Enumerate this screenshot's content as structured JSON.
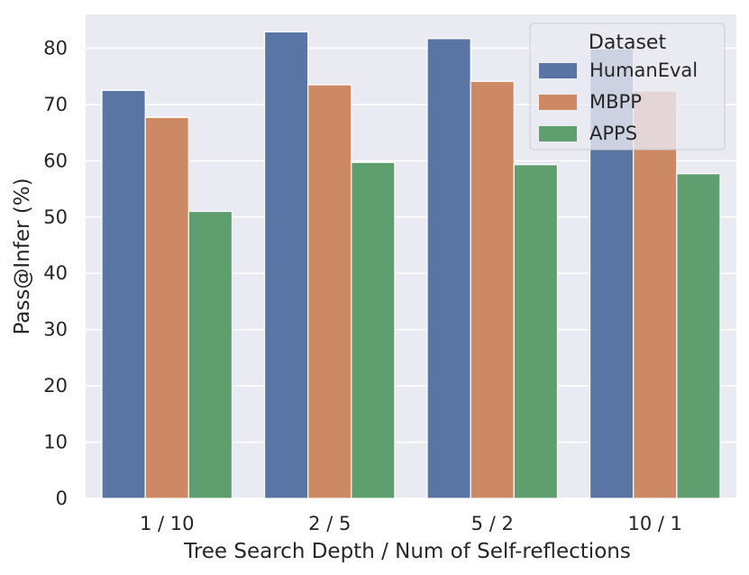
{
  "chart_data": {
    "type": "bar",
    "title": "",
    "xlabel": "Tree Search Depth / Num of Self-reflections",
    "ylabel": "Pass@Infer (%)",
    "categories": [
      "1 / 10",
      "2 / 5",
      "5 / 2",
      "10 / 1"
    ],
    "series": [
      {
        "name": "HumanEval",
        "color": "#5975a4",
        "values": [
          72.5,
          82.9,
          81.7,
          79.9
        ]
      },
      {
        "name": "MBPP",
        "color": "#cc8963",
        "values": [
          67.7,
          73.5,
          74.1,
          72.4
        ]
      },
      {
        "name": "APPS",
        "color": "#5f9e6e",
        "values": [
          51.0,
          59.7,
          59.3,
          57.7
        ]
      }
    ],
    "ylim": [
      0,
      86
    ],
    "yticks": [
      "0",
      "10",
      "20",
      "30",
      "40",
      "50",
      "60",
      "70",
      "80"
    ],
    "grid": true,
    "legend": {
      "title": "Dataset",
      "placement": "top-right"
    },
    "style": {
      "background": "#eaeaf2",
      "grid_color": "#ffffff",
      "text_color": "#262626"
    }
  }
}
